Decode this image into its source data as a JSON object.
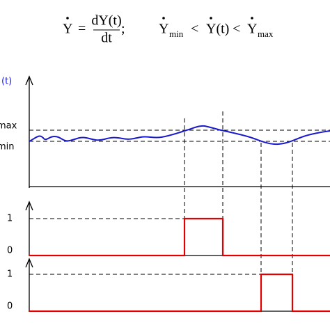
{
  "formula": {
    "ydot": "Y",
    "equals": "=",
    "numerator": "dY(t)",
    "denominator": "dt",
    "semicolon": ";",
    "ydot_min": "Y",
    "min_sub": "min",
    "lt1": "<",
    "ydot_t": "Y(t)",
    "lt2": "<",
    "ydot_max": "Y",
    "max_sub": "max"
  },
  "top_plot": {
    "y_label": "(t)",
    "max_label": "max",
    "min_label": "min"
  },
  "pulse_1": {
    "high_label": "1",
    "low_label": "0"
  },
  "pulse_2": {
    "high_label": "1",
    "low_label": "0"
  }
}
